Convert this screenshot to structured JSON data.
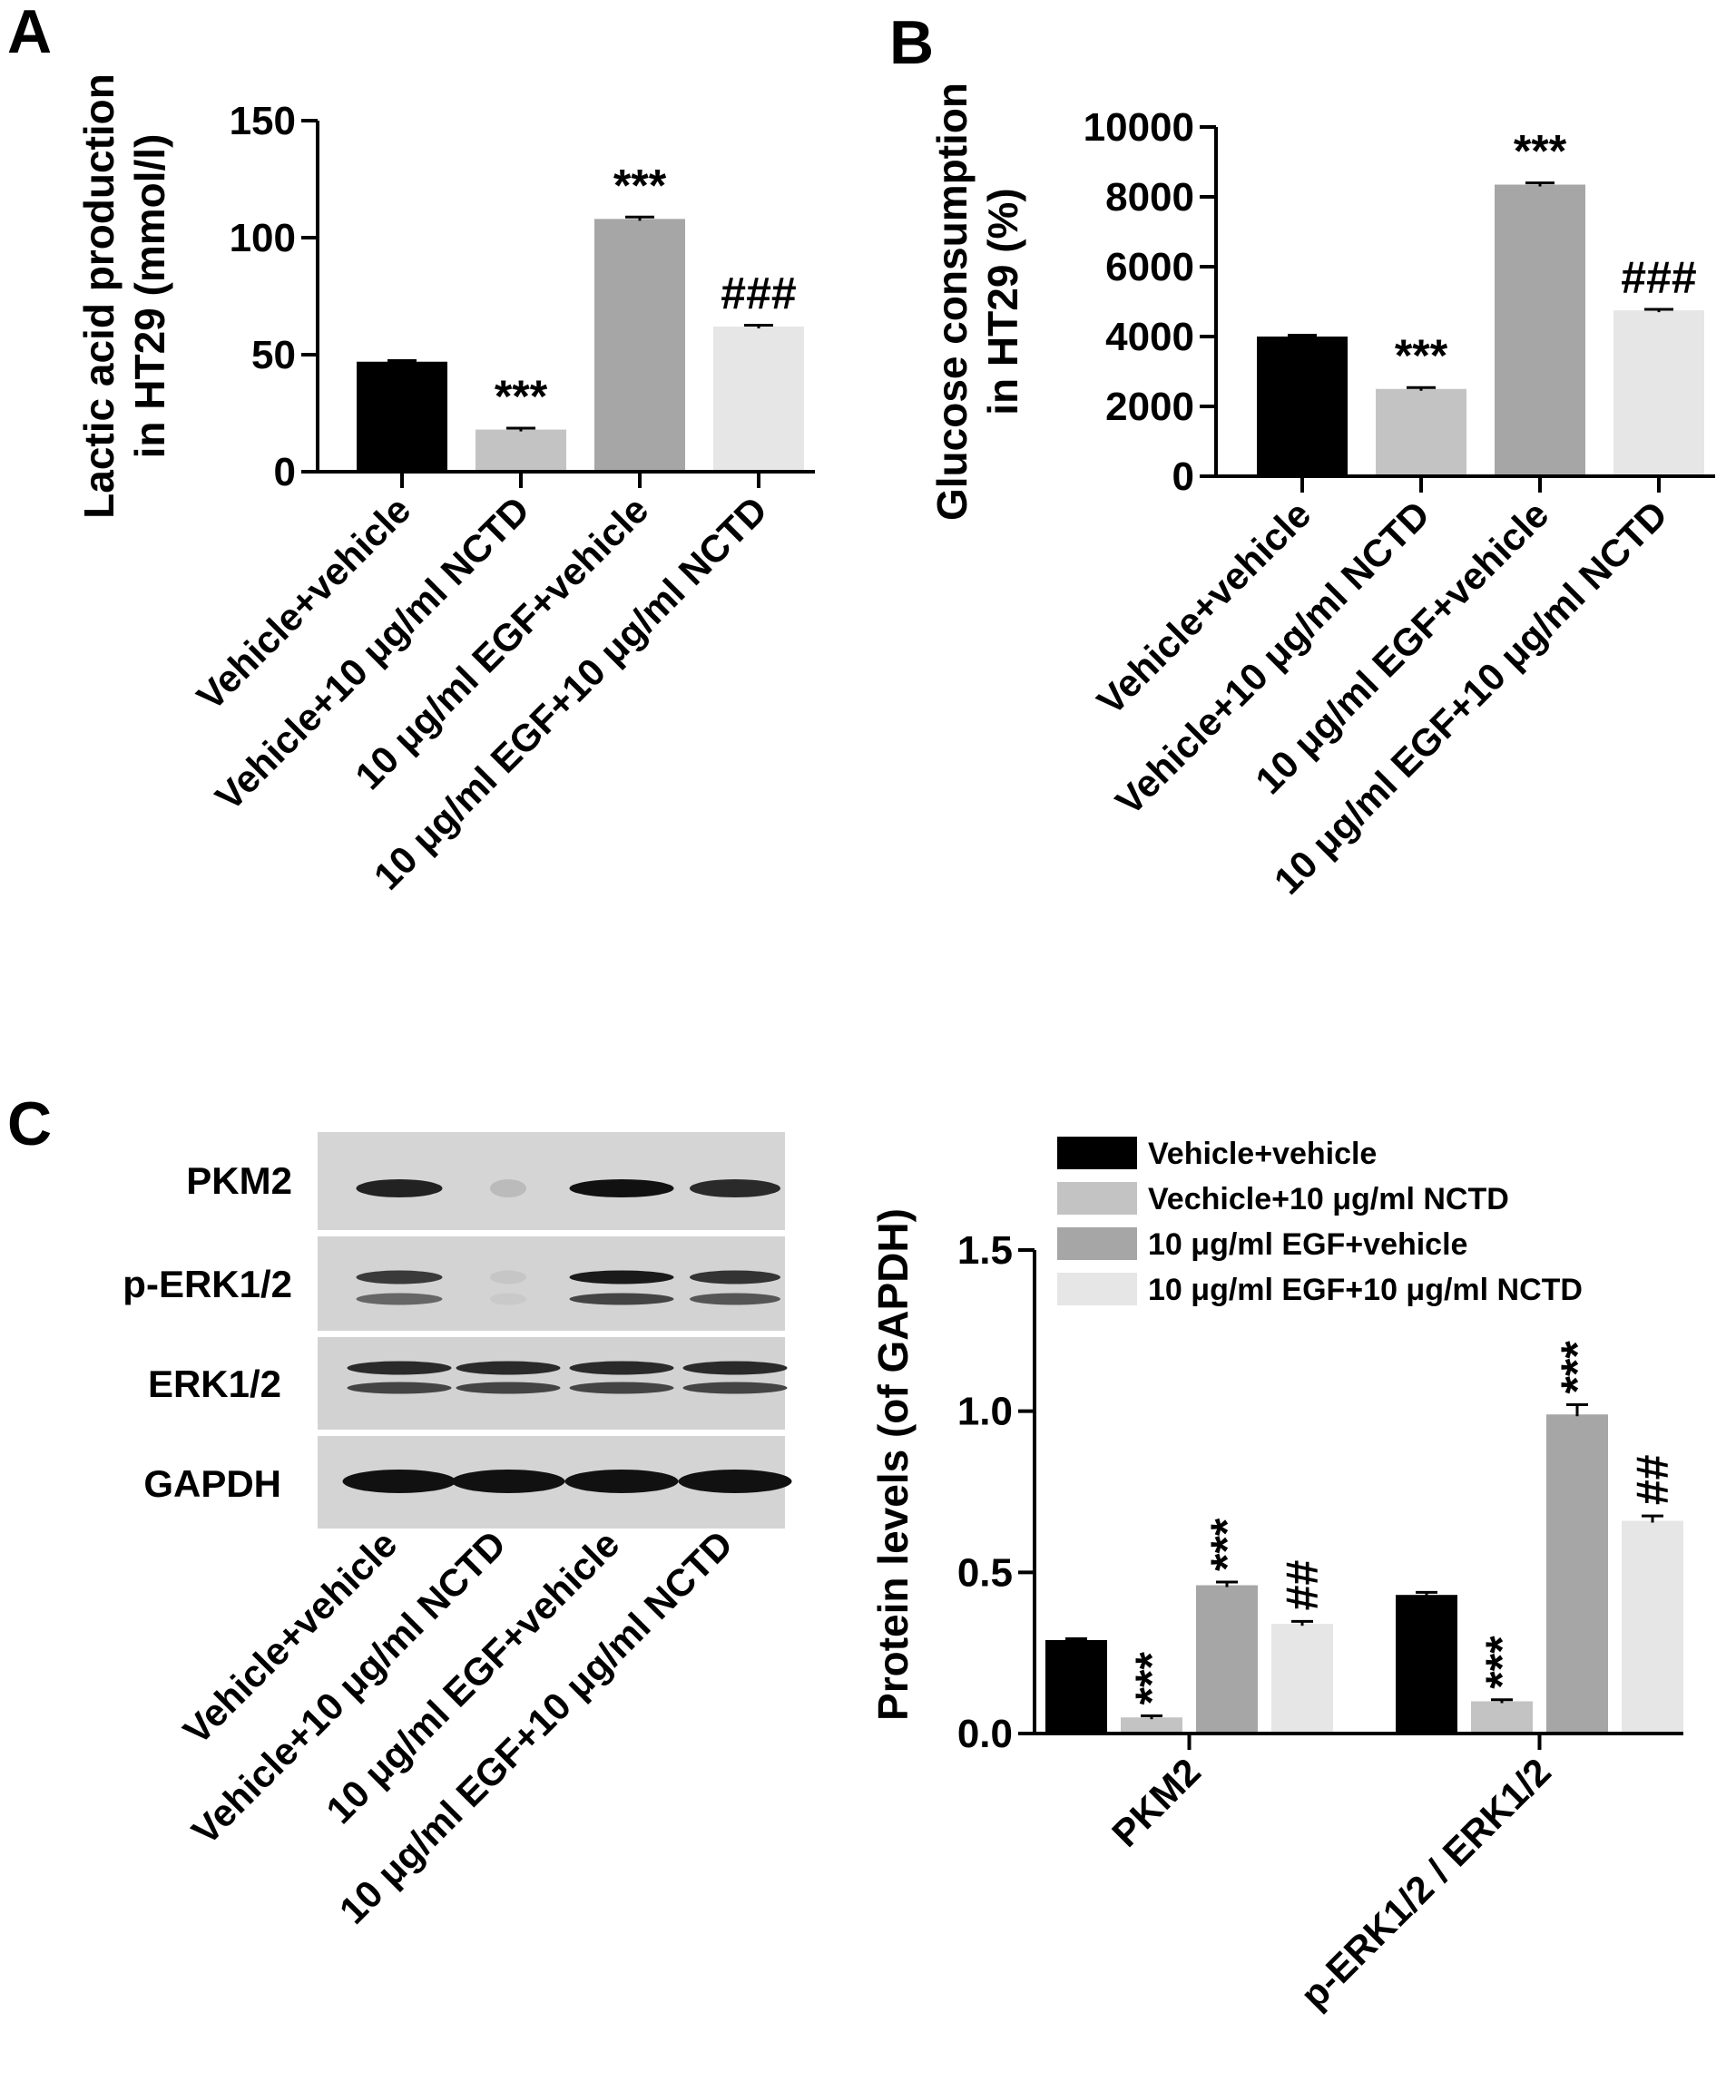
{
  "panels": {
    "A": "A",
    "B": "B",
    "C": "C"
  },
  "blot": {
    "bands": [
      "PKM2",
      "p-ERK1/2",
      "ERK1/2",
      "GAPDH"
    ],
    "lanes": [
      "Vehicle+vehicle",
      "Vehicle+10 μg/ml NCTD",
      "10 μg/ml EGF+vehicle",
      "10 μg/ml EGF+10 μg/ml NCTD"
    ]
  },
  "colors": {
    "group1": "#000000",
    "group2": "#c3c3c3",
    "group3": "#a6a6a6",
    "group4": "#e6e6e6"
  },
  "chart_data": [
    {
      "type": "bar",
      "panel": "A",
      "ylabel": [
        "Lactic acid production",
        "in HT29 (mmol/l)"
      ],
      "categories": [
        "Vehicle+vehicle",
        "Vehicle+10 μg/ml NCTD",
        "10 μg/ml EGF+vehicle",
        "10 μg/ml EGF+10 μg/ml NCTD"
      ],
      "values": [
        47,
        18,
        108,
        62
      ],
      "errors": [
        0.5,
        0.6,
        0.8,
        0.6
      ],
      "annotations": [
        "",
        "***",
        "***",
        "###"
      ],
      "ylim": [
        0,
        150
      ],
      "yticks": [
        0,
        50,
        100,
        150
      ]
    },
    {
      "type": "bar",
      "panel": "B",
      "ylabel": [
        "Glucose consumption",
        "in HT29 (%)"
      ],
      "categories": [
        "Vehicle+vehicle",
        "Vehicle+10 μg/ml NCTD",
        "10 μg/ml EGF+vehicle",
        "10 μg/ml EGF+10 μg/ml NCTD"
      ],
      "values": [
        4000,
        2500,
        8350,
        4750
      ],
      "errors": [
        40,
        40,
        50,
        30
      ],
      "annotations": [
        "",
        "***",
        "***",
        "###"
      ],
      "ylim": [
        0,
        10000
      ],
      "yticks": [
        0,
        2000,
        4000,
        6000,
        8000,
        10000
      ]
    },
    {
      "type": "bar",
      "panel": "C",
      "ylabel": "Protein levels (of GAPDH)",
      "categories": [
        "PKM2",
        "p-ERK1/2 / ERK1/2"
      ],
      "series": [
        {
          "name": "Vehicle+vehicle",
          "values": [
            0.29,
            0.43
          ],
          "errors": [
            0.004,
            0.008
          ],
          "annotations": [
            "",
            ""
          ]
        },
        {
          "name": "Vechicle+10 μg/ml NCTD",
          "values": [
            0.05,
            0.1
          ],
          "errors": [
            0.005,
            0.005
          ],
          "annotations": [
            "***",
            "***"
          ]
        },
        {
          "name": "10 μg/ml EGF+vehicle",
          "values": [
            0.46,
            0.99
          ],
          "errors": [
            0.01,
            0.03
          ],
          "annotations": [
            "***",
            "***"
          ]
        },
        {
          "name": "10 μg/ml EGF+10 μg/ml NCTD",
          "values": [
            0.34,
            0.66
          ],
          "errors": [
            0.008,
            0.015
          ],
          "annotations": [
            "##",
            "##"
          ]
        }
      ],
      "ylim": [
        0,
        1.5
      ],
      "yticks": [
        "0.0",
        "0.5",
        "1.0",
        "1.5"
      ],
      "legend": "top"
    }
  ]
}
